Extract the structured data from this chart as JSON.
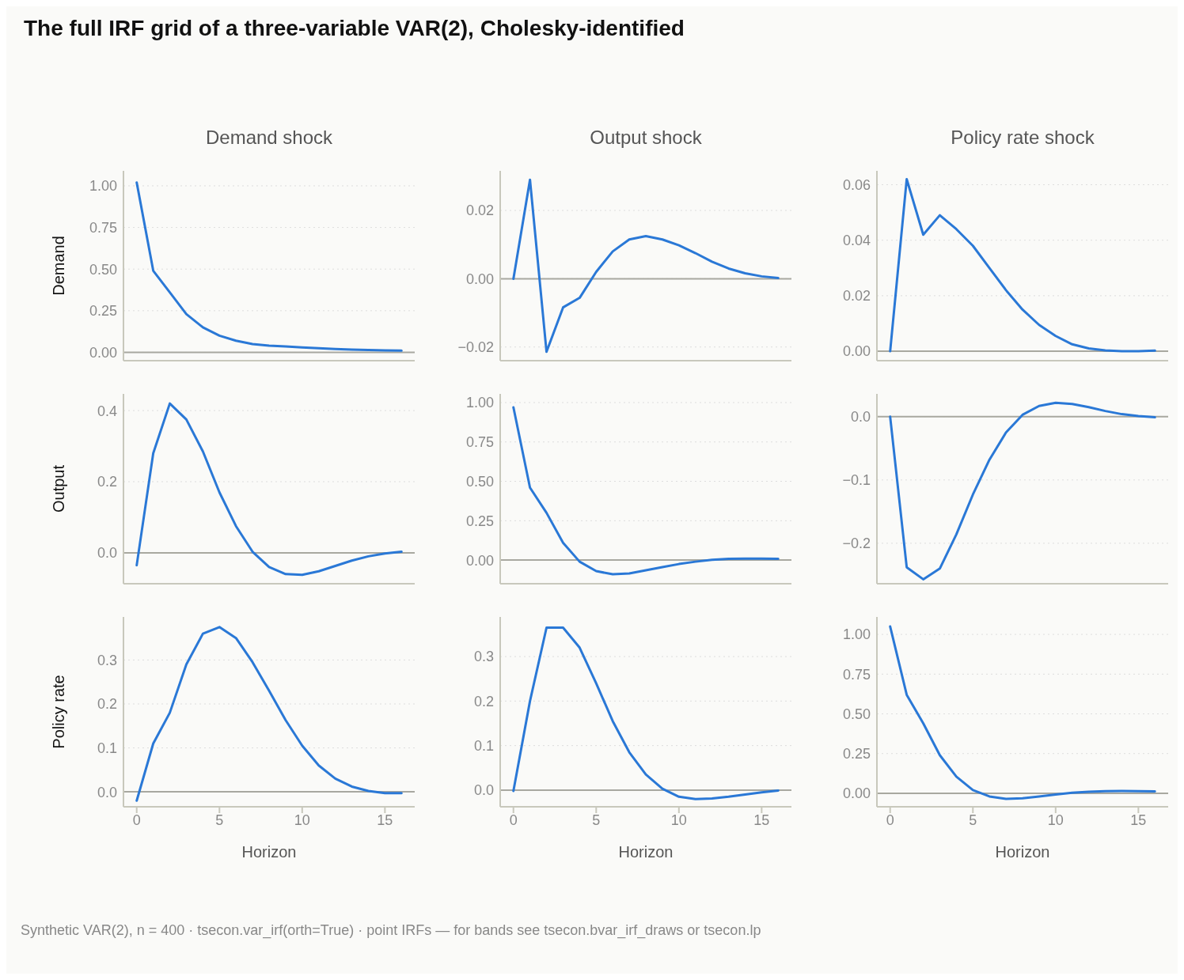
{
  "chart_data": [
    {
      "type": "line",
      "title": "The full IRF grid of a three-variable VAR(2), Cholesky-identified",
      "subtitle": "Demand shock",
      "ylabel": "Demand",
      "x": [
        0,
        1,
        2,
        3,
        4,
        5,
        6,
        7,
        8,
        9,
        10,
        11,
        12,
        13,
        14,
        15,
        16
      ],
      "series": [
        {
          "color": "#2a78d6",
          "values": [
            1.02,
            0.49,
            0.36,
            0.23,
            0.15,
            0.1,
            0.07,
            0.05,
            0.04,
            0.035,
            0.03,
            0.025,
            0.02,
            0.017,
            0.014,
            0.012,
            0.01
          ]
        }
      ],
      "xlim": [
        -0.8,
        16.8
      ],
      "xticks": [
        0,
        5,
        10,
        15
      ],
      "ylim": [
        -0.05,
        1.09
      ],
      "yticks": [
        {
          "value": 0,
          "label": "0.00"
        },
        {
          "value": 0.25,
          "label": "0.25"
        },
        {
          "value": 0.5,
          "label": "0.50"
        },
        {
          "value": 0.75,
          "label": "0.75"
        },
        {
          "value": 1,
          "label": "1.00"
        }
      ],
      "ref_lines": [
        {
          "axis": "y",
          "value": 0
        }
      ],
      "grid": "y",
      "tick_labels": "y",
      "marker": "none",
      "line_style": "solid",
      "legend": false
    },
    {
      "type": "line",
      "subtitle": "Output shock",
      "x": [
        0,
        1,
        2,
        3,
        4,
        5,
        6,
        7,
        8,
        9,
        10,
        11,
        12,
        13,
        14,
        15,
        16
      ],
      "series": [
        {
          "color": "#2a78d6",
          "values": [
            0,
            0.029,
            -0.0214,
            -0.0084,
            -0.0056,
            0.002,
            0.008,
            0.0115,
            0.0125,
            0.0115,
            0.0098,
            0.0075,
            0.005,
            0.003,
            0.0016,
            0.0007,
            0.0002
          ]
        }
      ],
      "xlim": [
        -0.8,
        16.8
      ],
      "xticks": [
        0,
        5,
        10,
        15
      ],
      "ylim": [
        -0.024,
        0.0316
      ],
      "yticks": [
        {
          "value": -0.02,
          "label": "−0.02"
        },
        {
          "value": 0,
          "label": "0.00"
        },
        {
          "value": 0.02,
          "label": "0.02"
        }
      ],
      "ref_lines": [
        {
          "axis": "y",
          "value": 0
        }
      ],
      "grid": "y",
      "tick_labels": "y",
      "marker": "none",
      "line_style": "solid",
      "legend": false
    },
    {
      "type": "line",
      "subtitle": "Policy rate shock",
      "x": [
        0,
        1,
        2,
        3,
        4,
        5,
        6,
        7,
        8,
        9,
        10,
        11,
        12,
        13,
        14,
        15,
        16
      ],
      "series": [
        {
          "color": "#2a78d6",
          "values": [
            0,
            0.062,
            0.042,
            0.049,
            0.044,
            0.038,
            0.03,
            0.022,
            0.015,
            0.0095,
            0.0055,
            0.0025,
            0.001,
            0.0003,
            0,
            0,
            0.0002
          ]
        }
      ],
      "xlim": [
        -0.8,
        16.8
      ],
      "xticks": [
        0,
        5,
        10,
        15
      ],
      "ylim": [
        -0.0034,
        0.065
      ],
      "yticks": [
        {
          "value": 0,
          "label": "0.00"
        },
        {
          "value": 0.02,
          "label": "0.02"
        },
        {
          "value": 0.04,
          "label": "0.04"
        },
        {
          "value": 0.06,
          "label": "0.06"
        }
      ],
      "ref_lines": [
        {
          "axis": "y",
          "value": 0
        }
      ],
      "grid": "y",
      "tick_labels": "y",
      "marker": "none",
      "line_style": "solid",
      "legend": false
    },
    {
      "type": "line",
      "ylabel": "Output",
      "x": [
        0,
        1,
        2,
        3,
        4,
        5,
        6,
        7,
        8,
        9,
        10,
        11,
        12,
        13,
        14,
        15,
        16
      ],
      "series": [
        {
          "color": "#2a78d6",
          "values": [
            -0.035,
            0.28,
            0.42,
            0.375,
            0.285,
            0.17,
            0.075,
            0.003,
            -0.04,
            -0.06,
            -0.062,
            -0.052,
            -0.037,
            -0.022,
            -0.01,
            -0.002,
            0.003
          ]
        }
      ],
      "xlim": [
        -0.8,
        16.8
      ],
      "xticks": [
        0,
        5,
        10,
        15
      ],
      "ylim": [
        -0.087,
        0.447
      ],
      "yticks": [
        {
          "value": 0,
          "label": "0.0"
        },
        {
          "value": 0.2,
          "label": "0.2"
        },
        {
          "value": 0.4,
          "label": "0.4"
        }
      ],
      "ref_lines": [
        {
          "axis": "y",
          "value": 0
        }
      ],
      "grid": "y",
      "tick_labels": "y",
      "marker": "none",
      "line_style": "solid",
      "legend": false
    },
    {
      "type": "line",
      "x": [
        0,
        1,
        2,
        3,
        4,
        5,
        6,
        7,
        8,
        9,
        10,
        11,
        12,
        13,
        14,
        15,
        16
      ],
      "series": [
        {
          "color": "#2a78d6",
          "values": [
            0.97,
            0.46,
            0.3,
            0.11,
            -0.01,
            -0.07,
            -0.09,
            -0.085,
            -0.065,
            -0.045,
            -0.025,
            -0.01,
            0.002,
            0.008,
            0.01,
            0.01,
            0.008
          ]
        }
      ],
      "xlim": [
        -0.8,
        16.8
      ],
      "xticks": [
        0,
        5,
        10,
        15
      ],
      "ylim": [
        -0.15,
        1.055
      ],
      "yticks": [
        {
          "value": 0,
          "label": "0.00"
        },
        {
          "value": 0.25,
          "label": "0.25"
        },
        {
          "value": 0.5,
          "label": "0.50"
        },
        {
          "value": 0.75,
          "label": "0.75"
        },
        {
          "value": 1,
          "label": "1.00"
        }
      ],
      "ref_lines": [
        {
          "axis": "y",
          "value": 0
        }
      ],
      "grid": "y",
      "tick_labels": "y",
      "marker": "none",
      "line_style": "solid",
      "legend": false
    },
    {
      "type": "line",
      "x": [
        0,
        1,
        2,
        3,
        4,
        5,
        6,
        7,
        8,
        9,
        10,
        11,
        12,
        13,
        14,
        15,
        16
      ],
      "series": [
        {
          "color": "#2a78d6",
          "values": [
            0,
            -0.238,
            -0.257,
            -0.24,
            -0.186,
            -0.123,
            -0.068,
            -0.025,
            0.003,
            0.017,
            0.022,
            0.02,
            0.015,
            0.009,
            0.004,
            0.001,
            -0.001
          ]
        }
      ],
      "xlim": [
        -0.8,
        16.8
      ],
      "xticks": [
        0,
        5,
        10,
        15
      ],
      "ylim": [
        -0.264,
        0.036
      ],
      "yticks": [
        {
          "value": -0.2,
          "label": "−0.2"
        },
        {
          "value": -0.1,
          "label": "−0.1"
        },
        {
          "value": 0,
          "label": "0.0"
        }
      ],
      "ref_lines": [
        {
          "axis": "y",
          "value": 0
        }
      ],
      "grid": "y",
      "tick_labels": "y",
      "marker": "none",
      "line_style": "solid",
      "legend": false
    },
    {
      "type": "line",
      "ylabel": "Policy rate",
      "xlabel": "Horizon",
      "x": [
        0,
        1,
        2,
        3,
        4,
        5,
        6,
        7,
        8,
        9,
        10,
        11,
        12,
        13,
        14,
        15,
        16
      ],
      "series": [
        {
          "color": "#2a78d6",
          "values": [
            -0.02,
            0.11,
            0.18,
            0.29,
            0.36,
            0.375,
            0.35,
            0.295,
            0.23,
            0.163,
            0.105,
            0.06,
            0.03,
            0.012,
            0.002,
            -0.003,
            -0.003
          ]
        }
      ],
      "xlim": [
        -0.8,
        16.8
      ],
      "xticks": [
        0,
        5,
        10,
        15
      ],
      "ylim": [
        -0.034,
        0.398
      ],
      "yticks": [
        {
          "value": 0,
          "label": "0.0"
        },
        {
          "value": 0.1,
          "label": "0.1"
        },
        {
          "value": 0.2,
          "label": "0.2"
        },
        {
          "value": 0.3,
          "label": "0.3"
        }
      ],
      "ref_lines": [
        {
          "axis": "y",
          "value": 0
        }
      ],
      "grid": "y",
      "marker": "none",
      "line_style": "solid",
      "legend": false
    },
    {
      "type": "line",
      "xlabel": "Horizon",
      "x": [
        0,
        1,
        2,
        3,
        4,
        5,
        6,
        7,
        8,
        9,
        10,
        11,
        12,
        13,
        14,
        15,
        16
      ],
      "series": [
        {
          "color": "#2a78d6",
          "values": [
            -0.002,
            0.2,
            0.365,
            0.365,
            0.32,
            0.24,
            0.155,
            0.085,
            0.035,
            0.003,
            -0.015,
            -0.02,
            -0.019,
            -0.015,
            -0.01,
            -0.005,
            -0.001
          ]
        }
      ],
      "xlim": [
        -0.8,
        16.8
      ],
      "xticks": [
        0,
        5,
        10,
        15
      ],
      "ylim": [
        -0.0375,
        0.389
      ],
      "yticks": [
        {
          "value": 0,
          "label": "0.0"
        },
        {
          "value": 0.1,
          "label": "0.1"
        },
        {
          "value": 0.2,
          "label": "0.2"
        },
        {
          "value": 0.3,
          "label": "0.3"
        }
      ],
      "ref_lines": [
        {
          "axis": "y",
          "value": 0
        }
      ],
      "grid": "y",
      "marker": "none",
      "line_style": "solid",
      "legend": false
    },
    {
      "type": "line",
      "xlabel": "Horizon",
      "x": [
        0,
        1,
        2,
        3,
        4,
        5,
        6,
        7,
        8,
        9,
        10,
        11,
        12,
        13,
        14,
        15,
        16
      ],
      "series": [
        {
          "color": "#2a78d6",
          "values": [
            1.05,
            0.62,
            0.44,
            0.24,
            0.105,
            0.02,
            -0.02,
            -0.035,
            -0.032,
            -0.02,
            -0.008,
            0.003,
            0.01,
            0.013,
            0.014,
            0.013,
            0.012
          ]
        }
      ],
      "xlim": [
        -0.8,
        16.8
      ],
      "xticks": [
        0,
        5,
        10,
        15
      ],
      "ylim": [
        -0.085,
        1.11
      ],
      "yticks": [
        {
          "value": 0,
          "label": "0.00"
        },
        {
          "value": 0.25,
          "label": "0.25"
        },
        {
          "value": 0.5,
          "label": "0.50"
        },
        {
          "value": 0.75,
          "label": "0.75"
        },
        {
          "value": 1,
          "label": "1.00"
        }
      ],
      "ref_lines": [
        {
          "axis": "y",
          "value": 0
        }
      ],
      "grid": "y",
      "marker": "none",
      "line_style": "solid",
      "legend": false,
      "annotations": [
        "Synthetic VAR(2), n = 400 · tsecon.var_irf(orth=True) · point IRFs — for bands see tsecon.bvar_irf_draws or tsecon.lp"
      ]
    }
  ]
}
